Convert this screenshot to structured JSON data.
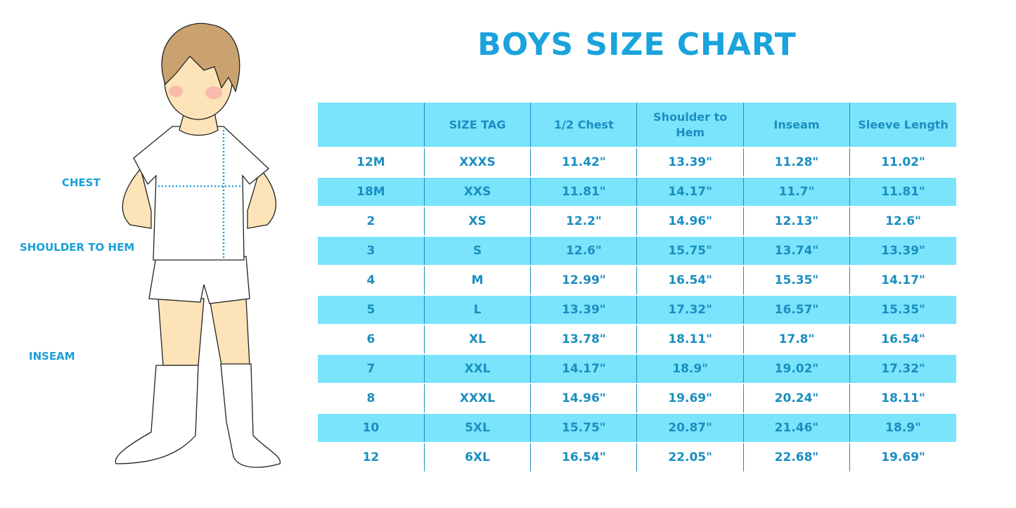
{
  "title": "BOYS SIZE CHART",
  "figure_labels": {
    "chest": "CHEST",
    "shoulder_to_hem": "SHOULDER TO HEM",
    "inseam": "INSEAM"
  },
  "colors": {
    "title": "#1aa3dc",
    "stripe": "#7ae4fc",
    "text": "#1a8ec0"
  },
  "chart_data": {
    "type": "table",
    "title": "BOYS SIZE CHART",
    "columns": [
      "",
      "SIZE TAG",
      "1/2 Chest",
      "Shoulder to Hem",
      "Inseam",
      "Sleeve Length"
    ],
    "rows": [
      [
        "12M",
        "XXXS",
        "11.42\"",
        "13.39\"",
        "11.28\"",
        "11.02\""
      ],
      [
        "18M",
        "XXS",
        "11.81\"",
        "14.17\"",
        "11.7\"",
        "11.81\""
      ],
      [
        "2",
        "XS",
        "12.2\"",
        "14.96\"",
        "12.13\"",
        "12.6\""
      ],
      [
        "3",
        "S",
        "12.6\"",
        "15.75\"",
        "13.74\"",
        "13.39\""
      ],
      [
        "4",
        "M",
        "12.99\"",
        "16.54\"",
        "15.35\"",
        "14.17\""
      ],
      [
        "5",
        "L",
        "13.39\"",
        "17.32\"",
        "16.57\"",
        "15.35\""
      ],
      [
        "6",
        "XL",
        "13.78\"",
        "18.11\"",
        "17.8\"",
        "16.54\""
      ],
      [
        "7",
        "XXL",
        "14.17\"",
        "18.9\"",
        "19.02\"",
        "17.32\""
      ],
      [
        "8",
        "XXXL",
        "14.96\"",
        "19.69\"",
        "20.24\"",
        "18.11\""
      ],
      [
        "10",
        "5XL",
        "15.75\"",
        "20.87\"",
        "21.46\"",
        "18.9\""
      ],
      [
        "12",
        "6XL",
        "16.54\"",
        "22.05\"",
        "22.68\"",
        "19.69\""
      ]
    ]
  }
}
